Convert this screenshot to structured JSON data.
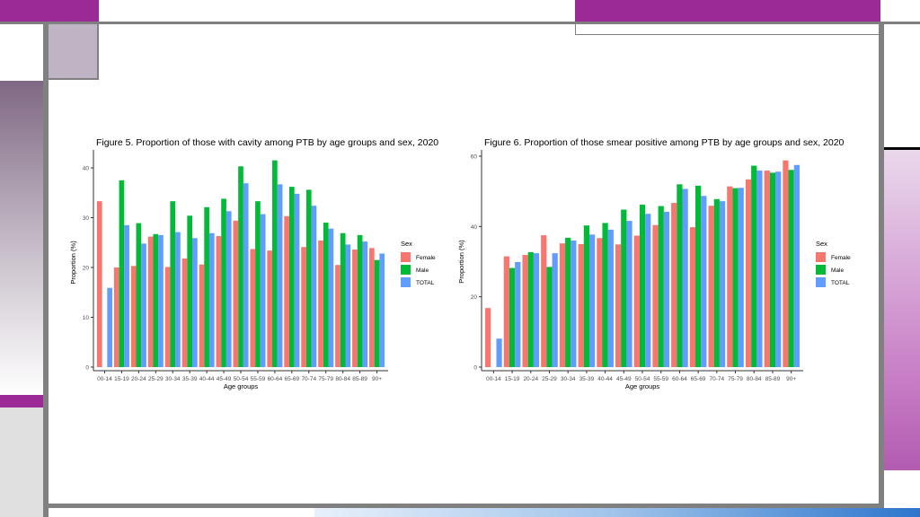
{
  "palette": {
    "accent": "#9b2a97",
    "frame": "#808080",
    "female": "#f8766d",
    "male": "#00ba38",
    "total": "#619cff",
    "axis_text": "#4d4d4d"
  },
  "legend": {
    "title": "Sex",
    "labels": [
      "Female",
      "Male",
      "TOTAL"
    ]
  },
  "chart_data": [
    {
      "type": "bar",
      "title": "Figure 5. Proportion of those with cavity among PTB by age groups and sex, 2020",
      "xlabel": "Age groups",
      "ylabel": "Proportion (%)",
      "ylim": [
        0,
        42
      ],
      "yticks": [
        0,
        10,
        20,
        30,
        40
      ],
      "grid": false,
      "legend_position": "right",
      "categories": [
        "00-14",
        "15-19",
        "20-24",
        "25-29",
        "30-34",
        "35-39",
        "40-44",
        "45-49",
        "50-54",
        "55-59",
        "60-64",
        "65-69",
        "70-74",
        "75-79",
        "80-84",
        "85-89",
        "90+"
      ],
      "tick_labels": [
        "00-14",
        "15-19",
        "20-24",
        "25-29",
        "30-34",
        "35-39",
        "40-44",
        "45-49",
        "50-54",
        "55-59",
        "60-64",
        "65-69",
        "70-74",
        "75-79",
        "80-84",
        "85-89",
        "90+"
      ],
      "series": [
        {
          "name": "Female",
          "values": [
            33.3,
            20.0,
            20.3,
            26.2,
            20.1,
            21.8,
            20.6,
            26.3,
            29.4,
            23.7,
            23.4,
            30.3,
            24.1,
            25.4,
            20.5,
            23.6,
            23.9
          ]
        },
        {
          "name": "Male",
          "values": [
            0,
            37.5,
            28.9,
            26.7,
            33.3,
            30.4,
            32.1,
            33.8,
            40.3,
            33.3,
            41.5,
            36.2,
            35.6,
            29.0,
            26.9,
            26.5,
            21.5
          ]
        },
        {
          "name": "TOTAL",
          "values": [
            15.9,
            28.5,
            24.8,
            26.5,
            27.1,
            25.9,
            26.9,
            31.3,
            36.9,
            30.7,
            36.7,
            34.8,
            32.4,
            27.8,
            24.6,
            25.2,
            22.8
          ]
        }
      ]
    },
    {
      "type": "bar",
      "title": "Figure 6. Proportion of those smear positive among PTB by age groups and sex, 2020",
      "xlabel": "Age groups",
      "ylabel": "Proportion (%)",
      "ylim": [
        0,
        60
      ],
      "yticks": [
        0,
        20,
        40,
        60
      ],
      "grid": false,
      "legend_position": "right",
      "categories": [
        "00-14",
        "15-19",
        "20-24",
        "25-29",
        "30-34",
        "35-39",
        "40-44",
        "45-49",
        "50-54",
        "55-59",
        "60-64",
        "65-69",
        "70-74",
        "75-79",
        "80-84",
        "85-89",
        "90+"
      ],
      "tick_labels": [
        "00-14",
        "15-19",
        "20-24",
        "25-29",
        "30-34",
        "35-39",
        "40-44",
        "45-49",
        "50-54",
        "55-59",
        "60-64",
        "65-69",
        "70-74",
        "75-79",
        "80-84",
        "85-89",
        "90+"
      ],
      "series": [
        {
          "name": "Female",
          "values": [
            16.8,
            31.5,
            31.9,
            37.5,
            35.2,
            35.0,
            36.7,
            34.9,
            37.4,
            40.4,
            46.7,
            39.8,
            45.9,
            51.4,
            53.4,
            55.9,
            58.8
          ]
        },
        {
          "name": "Male",
          "values": [
            0,
            28.2,
            32.7,
            28.5,
            36.8,
            40.3,
            41.0,
            44.8,
            46.2,
            45.8,
            52.0,
            51.6,
            47.8,
            50.9,
            57.3,
            55.3,
            56.1
          ]
        },
        {
          "name": "TOTAL",
          "values": [
            8.1,
            29.9,
            32.4,
            32.4,
            36.0,
            37.7,
            39.1,
            41.6,
            43.6,
            44.2,
            50.7,
            48.7,
            47.2,
            51.0,
            55.9,
            55.6,
            57.5
          ]
        }
      ]
    }
  ]
}
